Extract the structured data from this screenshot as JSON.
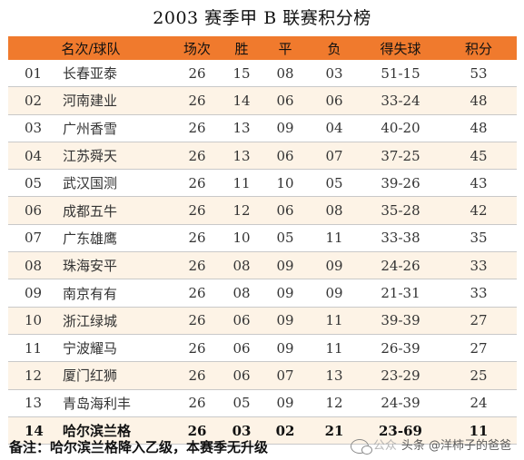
{
  "title": "2003 赛季甲 B 联赛积分榜",
  "table": {
    "headers": [
      "名次/球队",
      "场次",
      "胜",
      "平",
      "负",
      "得失球",
      "积分"
    ],
    "rows": [
      {
        "pos": "01",
        "team": "长春亚泰",
        "played": "26",
        "won": "15",
        "drawn": "08",
        "lost": "03",
        "goals": "51-15",
        "points": "53"
      },
      {
        "pos": "02",
        "team": "河南建业",
        "played": "26",
        "won": "14",
        "drawn": "06",
        "lost": "06",
        "goals": "33-24",
        "points": "48"
      },
      {
        "pos": "03",
        "team": "广州香雪",
        "played": "26",
        "won": "13",
        "drawn": "09",
        "lost": "04",
        "goals": "40-20",
        "points": "48"
      },
      {
        "pos": "04",
        "team": "江苏舜天",
        "played": "26",
        "won": "13",
        "drawn": "06",
        "lost": "07",
        "goals": "37-25",
        "points": "45"
      },
      {
        "pos": "05",
        "team": "武汉国测",
        "played": "26",
        "won": "11",
        "drawn": "10",
        "lost": "05",
        "goals": "39-26",
        "points": "43"
      },
      {
        "pos": "06",
        "team": "成都五牛",
        "played": "26",
        "won": "12",
        "drawn": "06",
        "lost": "08",
        "goals": "35-28",
        "points": "42"
      },
      {
        "pos": "07",
        "team": "广东雄鹰",
        "played": "26",
        "won": "10",
        "drawn": "05",
        "lost": "11",
        "goals": "33-38",
        "points": "35"
      },
      {
        "pos": "08",
        "team": "珠海安平",
        "played": "26",
        "won": "08",
        "drawn": "09",
        "lost": "09",
        "goals": "24-26",
        "points": "33"
      },
      {
        "pos": "09",
        "team": "南京有有",
        "played": "26",
        "won": "08",
        "drawn": "09",
        "lost": "09",
        "goals": "21-31",
        "points": "33"
      },
      {
        "pos": "10",
        "team": "浙江绿城",
        "played": "26",
        "won": "06",
        "drawn": "09",
        "lost": "11",
        "goals": "39-39",
        "points": "27"
      },
      {
        "pos": "11",
        "team": "宁波耀马",
        "played": "26",
        "won": "06",
        "drawn": "09",
        "lost": "11",
        "goals": "26-39",
        "points": "27"
      },
      {
        "pos": "12",
        "team": "厦门红狮",
        "played": "26",
        "won": "06",
        "drawn": "07",
        "lost": "13",
        "goals": "23-29",
        "points": "25"
      },
      {
        "pos": "13",
        "team": "青岛海利丰",
        "played": "26",
        "won": "05",
        "drawn": "09",
        "lost": "12",
        "goals": "24-39",
        "points": "24"
      },
      {
        "pos": "14",
        "team": "哈尔滨兰格",
        "played": "26",
        "won": "03",
        "drawn": "02",
        "lost": "21",
        "goals": "23-69",
        "points": "11"
      }
    ]
  },
  "note": "备注：哈尔滨兰格降入乙级，本赛季无升级",
  "watermark": {
    "faint_text": "公众",
    "text": "头条 @洋柿子的爸爸"
  },
  "colors": {
    "header_bg": "#f07a2d",
    "stripe_bg": "#fdf3e6"
  }
}
